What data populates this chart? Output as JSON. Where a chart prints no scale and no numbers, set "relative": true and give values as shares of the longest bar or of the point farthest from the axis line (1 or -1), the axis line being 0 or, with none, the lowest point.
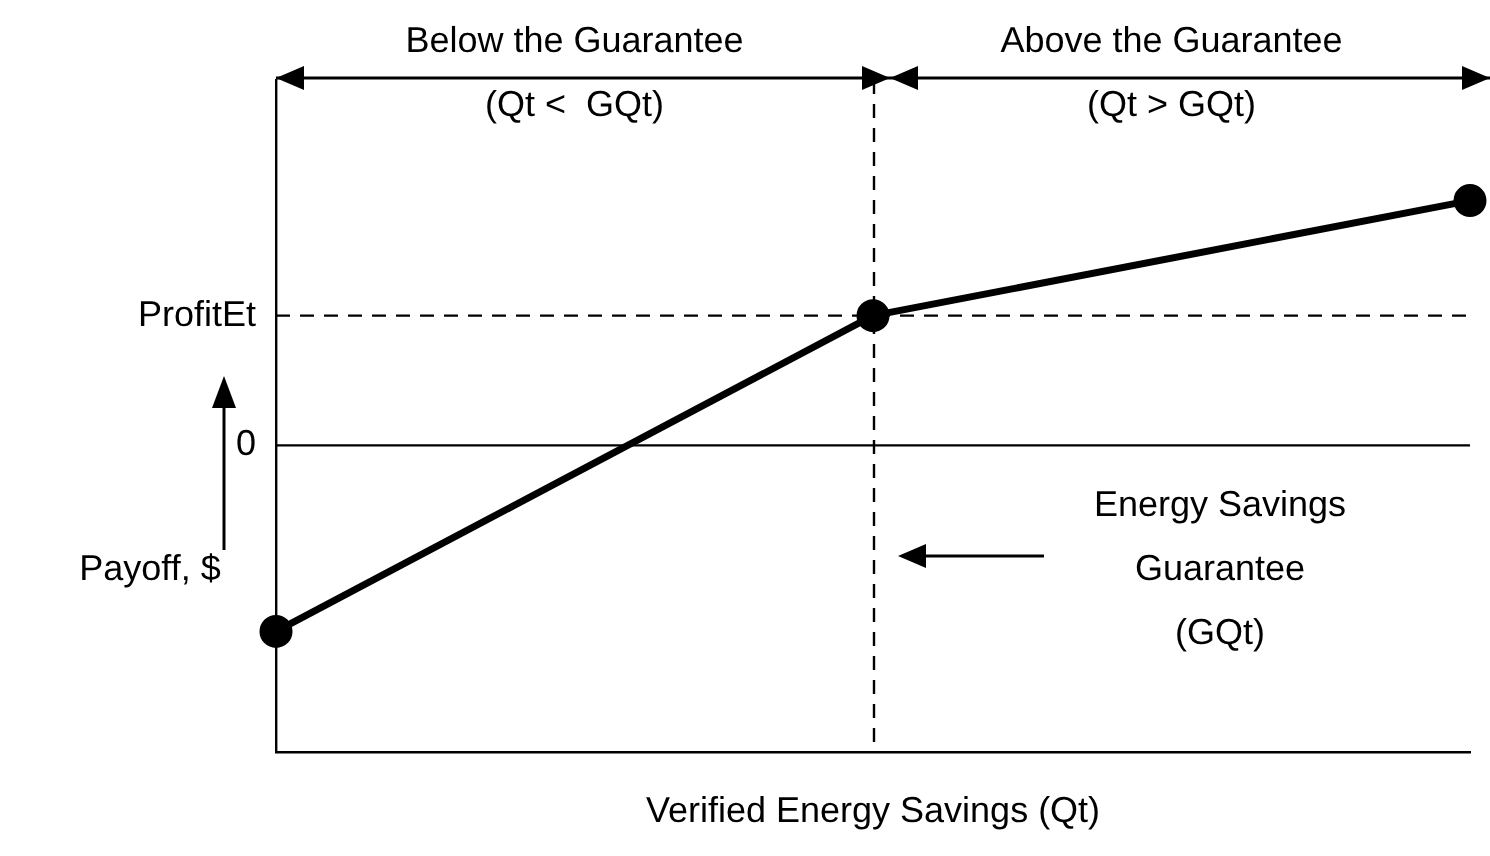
{
  "chart_data": {
    "type": "line",
    "xlabel": "Verified Energy Savings (Qt)",
    "ylabel": "Payoff, $",
    "categories": [
      null,
      null,
      null
    ],
    "relative": true,
    "grid": false,
    "legend": false,
    "marker": "circle",
    "line_style": "solid",
    "series": [
      {
        "color": "#000000",
        "values": [
          -0.76,
          0.53,
          1
        ]
      }
    ],
    "ref_lines": [
      {
        "axis": "y",
        "value": 0,
        "label": "0",
        "color": "#000000",
        "line_style": "solid"
      },
      {
        "axis": "y",
        "value": 0.53,
        "label": "ProfitEt",
        "color": "#000000",
        "line_style": "dashed"
      }
    ],
    "annotations": [
      "Below the Guarantee\n(Qt <  GQt)",
      "Above the Guarantee\n(Qt > GQt)",
      "Energy Savings\nGuarantee\n(GQt)"
    ]
  }
}
